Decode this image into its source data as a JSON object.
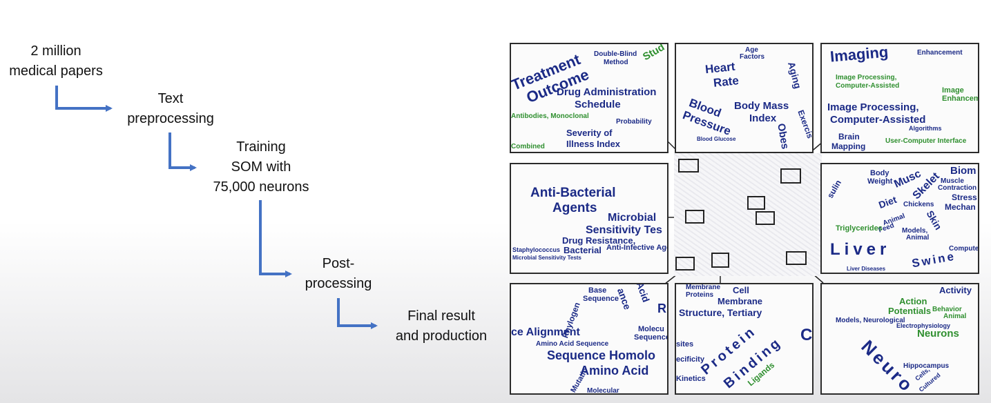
{
  "flow": {
    "steps": [
      {
        "lines": [
          "2 million",
          "medical papers"
        ]
      },
      {
        "lines": [
          "Text",
          "preprocessing"
        ]
      },
      {
        "lines": [
          "Training",
          "SOM with",
          "75,000 neurons"
        ]
      },
      {
        "lines": [
          "Post-",
          "processing"
        ]
      },
      {
        "lines": [
          "Final result",
          "and production"
        ]
      }
    ],
    "arrow_color": "#4472c4"
  },
  "figure": {
    "panels": [
      {
        "id": "top-left",
        "words": [
          "Treatment",
          "Outcome",
          "Double-Blind",
          "Method",
          "Drug Administration",
          "Schedule",
          "Severity of",
          "Illness Index",
          "Probability",
          "Antibodies, Monoclonal",
          "Combined",
          "Stud"
        ]
      },
      {
        "id": "top-middle",
        "words": [
          "Heart",
          "Rate",
          "Blood",
          "Pressure",
          "Body Mass",
          "Index",
          "Aging",
          "Obes",
          "Exercis",
          "Age",
          "Factors",
          "Blood Glucose"
        ]
      },
      {
        "id": "top-right",
        "words": [
          "Imaging",
          "Image Processing,",
          "Computer-Assisted",
          "Image Processing,",
          "Computer-Assisted",
          "Brain",
          "Mapping",
          "User-Computer Interface",
          "Image",
          "Enhanceme",
          "Enhancement",
          "Algorithms"
        ]
      },
      {
        "id": "middle-left",
        "words": [
          "Anti-Bacterial",
          "Agents",
          "Microbial",
          "Sensitivity Tes",
          "Drug Resistance,",
          "Bacterial",
          "Anti-Infective Age",
          "Staphylococcus",
          "Microbial Sensitivity Tests"
        ]
      },
      {
        "id": "middle-right",
        "words": [
          "Body",
          "Weight",
          "Musc",
          "Skelet",
          "Biom",
          "Muscle",
          "Contraction",
          "Stress",
          "Mechan",
          "Diet",
          "Chickens",
          "Skin",
          "Animal",
          "Feed",
          "Triglycerides",
          "Liver",
          "Swine",
          "Computer S",
          "Liver Diseases",
          "sulin",
          "Models,",
          "Animal"
        ]
      },
      {
        "id": "bottom-left",
        "words": [
          "Base",
          "Sequence",
          "Phylogen",
          "ance",
          "Acid",
          "R",
          "ce Alignment",
          "Amino Acid Sequence",
          "Molecu",
          "Sequence",
          "Sequence Homolo",
          "Amino Acid",
          "Mutatio",
          "Molecular"
        ]
      },
      {
        "id": "bottom-middle",
        "words": [
          "Membrane",
          "Proteins",
          "Cell",
          "Membrane",
          "Structure, Tertiary",
          "Protein",
          "Binding",
          "Ligands",
          "Kinetics",
          "ecificity",
          "sites",
          "C"
        ]
      },
      {
        "id": "bottom-right",
        "words": [
          "Activity",
          "Action",
          "Potentials",
          "Behavior",
          "Animal",
          "Models, Neurological",
          "Neurons",
          "Hippocampus",
          "Electrophysiology",
          "Neuro",
          "Cells,",
          "Cultured"
        ]
      }
    ]
  }
}
